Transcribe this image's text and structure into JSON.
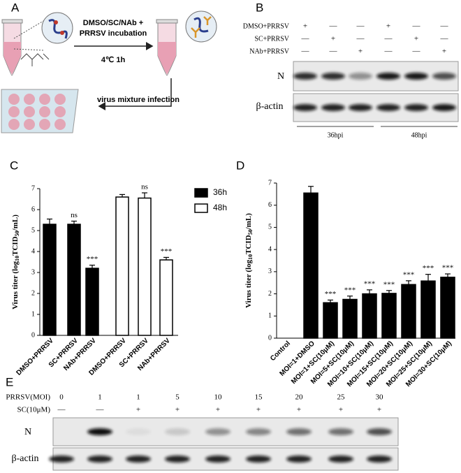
{
  "panel_a": {
    "label": "A",
    "incubation_text": [
      "DMSO/SC/NAb +",
      "PRRSV incubation"
    ],
    "condition": "4℃ 1h",
    "infection_text": "virus mixture infection"
  },
  "panel_b": {
    "label": "B",
    "treatments": [
      {
        "name": "DMSO+PRRSV",
        "signs": [
          "+",
          "—",
          "—",
          "+",
          "—",
          "—"
        ]
      },
      {
        "name": "SC+PRRSV",
        "signs": [
          "—",
          "+",
          "—",
          "—",
          "+",
          "—"
        ]
      },
      {
        "name": "NAb+PRRSV",
        "signs": [
          "—",
          "—",
          "+",
          "—",
          "—",
          "+"
        ]
      }
    ],
    "bands": [
      "N",
      "β-actin"
    ],
    "timepoints": [
      "36hpi",
      "48hpi"
    ]
  },
  "chart_data": [
    {
      "panel_label": "C",
      "type": "bar",
      "categories": [
        "DMSO+PRRSV",
        "SC+PRRSV",
        "NAb+PRRSV",
        "DMSO+PRRSV",
        "SC+PRRSV",
        "NAb+PRRSV"
      ],
      "series": [
        {
          "name": "36h",
          "color": "#000000",
          "values": [
            5.3,
            5.3,
            3.2,
            null,
            null,
            null
          ],
          "errors": [
            0.25,
            0.15,
            0.15,
            null,
            null,
            null
          ]
        },
        {
          "name": "48h",
          "color": "#ffffff",
          "values": [
            null,
            null,
            null,
            6.6,
            6.55,
            3.6
          ],
          "errors": [
            null,
            null,
            null,
            0.12,
            0.25,
            0.12
          ]
        }
      ],
      "annotations": [
        null,
        "ns",
        "***",
        null,
        "ns",
        "***"
      ],
      "ylabel": [
        "Virus titer (log",
        "10",
        "TCID",
        "50",
        "/mL)"
      ],
      "ylim": [
        0,
        7
      ],
      "yticks": [
        0,
        1,
        2,
        3,
        4,
        5,
        6,
        7
      ],
      "legend": "upper right"
    },
    {
      "panel_label": "D",
      "type": "bar",
      "categories": [
        "Control",
        "MOI=1+DMSO",
        "MOI=1+SC(10μM)",
        "MOI=5+SC(10μM)",
        "MOI=10+SC(10μM)",
        "MOI=15+SC(10μM)",
        "MOI=20+SC(10μM)",
        "MOI=25+SC(10μM)",
        "MOI=30+SC(10μM)"
      ],
      "series": [
        {
          "color": "#000000",
          "values": [
            0,
            6.55,
            1.6,
            1.75,
            2.0,
            2.02,
            2.42,
            2.58,
            2.75
          ],
          "errors": [
            0,
            0.3,
            0.12,
            0.15,
            0.18,
            0.13,
            0.17,
            0.3,
            0.15
          ]
        }
      ],
      "annotations": [
        null,
        null,
        "***",
        "***",
        "***",
        "***",
        "***",
        "***",
        "***"
      ],
      "ylabel": [
        "Virus titer (log",
        "10",
        "TCID",
        "50",
        "/mL)"
      ],
      "ylim": [
        0,
        7
      ],
      "yticks": [
        0,
        1,
        2,
        3,
        4,
        5,
        6,
        7
      ]
    }
  ],
  "panel_e": {
    "label": "E",
    "rows": [
      {
        "name": "PRRSV(MOI)",
        "entries": [
          "0",
          "1",
          "1",
          "5",
          "10",
          "15",
          "20",
          "25",
          "30"
        ]
      },
      {
        "name": "SC(10μM)",
        "entries": [
          "—",
          "—",
          "+",
          "+",
          "+",
          "+",
          "+",
          "+",
          "+"
        ]
      }
    ],
    "bands": [
      "N",
      "β-actin"
    ]
  }
}
